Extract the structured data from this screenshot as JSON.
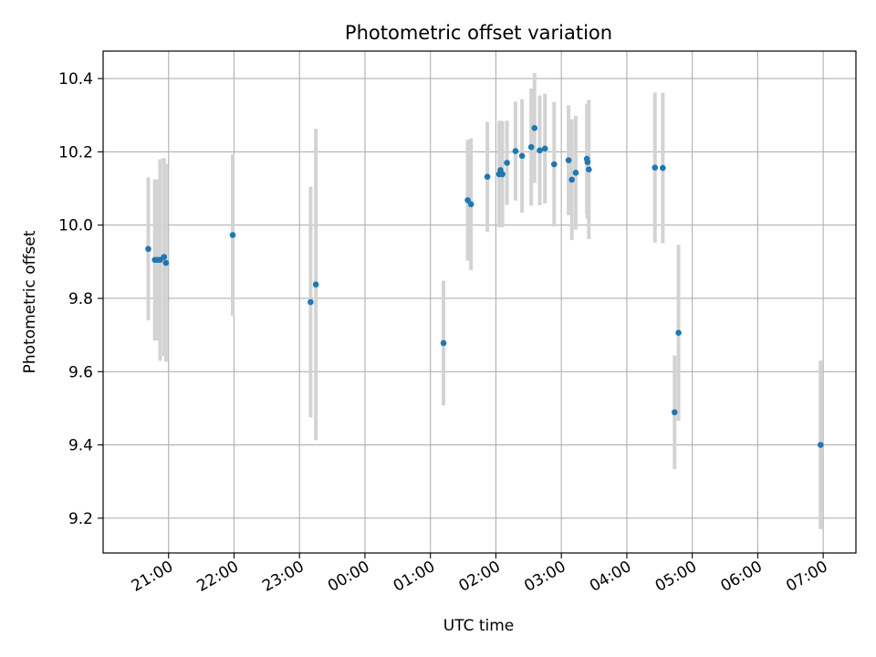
{
  "chart_data": {
    "type": "scatter",
    "title": "Photometric offset variation",
    "xlabel": "UTC time",
    "ylabel": "Photometric offset",
    "x_unit": "hours after 00:00 UTC",
    "xlim": [
      -4.0,
      7.5
    ],
    "ylim": [
      9.105,
      10.475
    ],
    "grid": true,
    "x_ticks": [
      {
        "value": -3,
        "label": "21:00"
      },
      {
        "value": -2,
        "label": "22:00"
      },
      {
        "value": -1,
        "label": "23:00"
      },
      {
        "value": 0,
        "label": "00:00"
      },
      {
        "value": 1,
        "label": "01:00"
      },
      {
        "value": 2,
        "label": "02:00"
      },
      {
        "value": 3,
        "label": "03:00"
      },
      {
        "value": 4,
        "label": "04:00"
      },
      {
        "value": 5,
        "label": "05:00"
      },
      {
        "value": 6,
        "label": "06:00"
      },
      {
        "value": 7,
        "label": "07:00"
      }
    ],
    "y_ticks": [
      {
        "value": 9.2,
        "label": "9.2"
      },
      {
        "value": 9.4,
        "label": "9.4"
      },
      {
        "value": 9.6,
        "label": "9.6"
      },
      {
        "value": 9.8,
        "label": "9.8"
      },
      {
        "value": 10.0,
        "label": "10.0"
      },
      {
        "value": 10.2,
        "label": "10.2"
      },
      {
        "value": 10.4,
        "label": "10.4"
      }
    ],
    "point_color": "#1f77b4",
    "errorbar_color": "#d3d3d3",
    "points": [
      {
        "x": -3.31,
        "y": 9.935,
        "err": 0.195
      },
      {
        "x": -3.21,
        "y": 9.905,
        "err": 0.22
      },
      {
        "x": -3.17,
        "y": 9.905,
        "err": 0.22
      },
      {
        "x": -3.13,
        "y": 9.905,
        "err": 0.275
      },
      {
        "x": -3.07,
        "y": 9.913,
        "err": 0.27
      },
      {
        "x": -3.04,
        "y": 9.897,
        "err": 0.27
      },
      {
        "x": -2.02,
        "y": 9.973,
        "err": 0.22
      },
      {
        "x": -0.83,
        "y": 9.79,
        "err": 0.315
      },
      {
        "x": -0.75,
        "y": 9.838,
        "err": 0.425
      },
      {
        "x": 1.2,
        "y": 9.678,
        "err": 0.17
      },
      {
        "x": 1.57,
        "y": 10.068,
        "err": 0.165
      },
      {
        "x": 1.62,
        "y": 10.057,
        "err": 0.18
      },
      {
        "x": 1.87,
        "y": 10.132,
        "err": 0.15
      },
      {
        "x": 2.05,
        "y": 10.139,
        "err": 0.145
      },
      {
        "x": 2.07,
        "y": 10.15,
        "err": 0.135
      },
      {
        "x": 2.1,
        "y": 10.139,
        "err": 0.145
      },
      {
        "x": 2.17,
        "y": 10.17,
        "err": 0.115
      },
      {
        "x": 2.3,
        "y": 10.202,
        "err": 0.135
      },
      {
        "x": 2.4,
        "y": 10.189,
        "err": 0.155
      },
      {
        "x": 2.54,
        "y": 10.213,
        "err": 0.16
      },
      {
        "x": 2.59,
        "y": 10.265,
        "err": 0.15
      },
      {
        "x": 2.67,
        "y": 10.204,
        "err": 0.15
      },
      {
        "x": 2.75,
        "y": 10.209,
        "err": 0.15
      },
      {
        "x": 2.89,
        "y": 10.166,
        "err": 0.17
      },
      {
        "x": 3.11,
        "y": 10.177,
        "err": 0.15
      },
      {
        "x": 3.16,
        "y": 10.124,
        "err": 0.165
      },
      {
        "x": 3.22,
        "y": 10.143,
        "err": 0.155
      },
      {
        "x": 3.39,
        "y": 10.181,
        "err": 0.15
      },
      {
        "x": 3.4,
        "y": 10.172,
        "err": 0.155
      },
      {
        "x": 3.42,
        "y": 10.152,
        "err": 0.19
      },
      {
        "x": 4.43,
        "y": 10.157,
        "err": 0.205
      },
      {
        "x": 4.55,
        "y": 10.156,
        "err": 0.205
      },
      {
        "x": 4.73,
        "y": 9.489,
        "err": 0.155
      },
      {
        "x": 4.79,
        "y": 9.706,
        "err": 0.24
      },
      {
        "x": 6.96,
        "y": 9.4,
        "err": 0.23
      }
    ]
  }
}
